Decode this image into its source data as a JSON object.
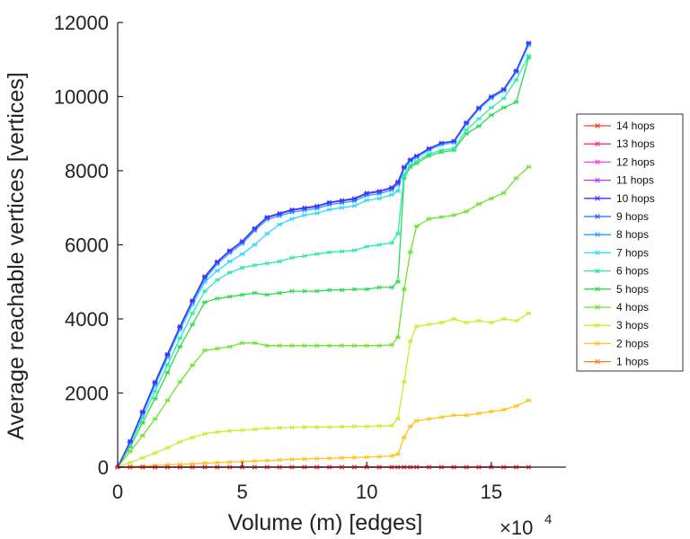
{
  "chart_data": {
    "type": "line",
    "title": "",
    "xlabel": "Volume (m) [edges]",
    "ylabel": "Average reachable vertices [vertices]",
    "x_multiplier_label": "×10",
    "x_multiplier_exponent": "4",
    "xlim": [
      0,
      18
    ],
    "ylim": [
      0,
      12000
    ],
    "xticks": [
      0,
      5,
      10,
      15
    ],
    "yticks": [
      0,
      2000,
      4000,
      6000,
      8000,
      10000,
      12000
    ],
    "grid": false,
    "legend_position": "right",
    "x": [
      0,
      0.5,
      1,
      1.5,
      2,
      2.5,
      3,
      3.5,
      4,
      4.5,
      5,
      5.5,
      6,
      6.5,
      7,
      7.5,
      8,
      8.5,
      9,
      9.5,
      10,
      10.5,
      11,
      11.25,
      11.5,
      11.75,
      12,
      12.5,
      13,
      13.5,
      14,
      14.5,
      15,
      15.5,
      16,
      16.5
    ],
    "series": [
      {
        "name": "14 hops",
        "color": "#ff3b30",
        "values": [
          0,
          0,
          0,
          0,
          0,
          0,
          0,
          0,
          0,
          0,
          0,
          0,
          0,
          0,
          0,
          0,
          0,
          0,
          0,
          0,
          0,
          0,
          0,
          0,
          0,
          0,
          0,
          0,
          0,
          0,
          0,
          0,
          0,
          0,
          0,
          0
        ]
      },
      {
        "name": "13 hops",
        "color": "#ff2d78",
        "values": [
          0,
          0,
          0,
          0,
          0,
          0,
          0,
          0,
          0,
          0,
          0,
          0,
          0,
          0,
          0,
          0,
          0,
          0,
          0,
          0,
          0,
          0,
          0,
          0,
          0,
          0,
          0,
          0,
          0,
          0,
          0,
          0,
          0,
          0,
          0,
          0
        ]
      },
      {
        "name": "12 hops",
        "color": "#ff3cf0",
        "values": [
          0,
          0,
          0,
          0,
          0,
          0,
          0,
          0,
          0,
          0,
          0,
          0,
          0,
          0,
          0,
          0,
          0,
          0,
          0,
          0,
          0,
          0,
          0,
          0,
          0,
          0,
          0,
          0,
          0,
          0,
          0,
          0,
          0,
          0,
          0,
          0
        ]
      },
      {
        "name": "11 hops",
        "color": "#b43cff",
        "values": [
          0,
          0,
          0,
          0,
          0,
          0,
          0,
          0,
          0,
          0,
          0,
          0,
          0,
          0,
          0,
          0,
          0,
          0,
          0,
          0,
          0,
          0,
          0,
          0,
          0,
          0,
          0,
          0,
          0,
          0,
          0,
          0,
          0,
          0,
          0,
          0
        ]
      },
      {
        "name": "10 hops",
        "color": "#4b2dff",
        "values": [
          0,
          700,
          1500,
          2300,
          3050,
          3800,
          4500,
          5150,
          5550,
          5850,
          6100,
          6450,
          6750,
          6850,
          6950,
          7000,
          7050,
          7150,
          7200,
          7250,
          7400,
          7450,
          7550,
          7700,
          8100,
          8300,
          8400,
          8600,
          8750,
          8800,
          9300,
          9700,
          10000,
          10200,
          10700,
          11450
        ]
      },
      {
        "name": "9 hops",
        "color": "#2f5dff",
        "values": [
          0,
          690,
          1480,
          2280,
          3030,
          3780,
          4480,
          5130,
          5530,
          5830,
          6080,
          6430,
          6730,
          6830,
          6930,
          6980,
          7030,
          7130,
          7180,
          7230,
          7380,
          7430,
          7530,
          7680,
          8100,
          8300,
          8400,
          8600,
          8750,
          8800,
          9300,
          9700,
          10000,
          10200,
          10700,
          11450
        ]
      },
      {
        "name": "8 hops",
        "color": "#2a9dff",
        "values": [
          0,
          680,
          1460,
          2250,
          3000,
          3750,
          4450,
          5080,
          5480,
          5780,
          6030,
          6380,
          6680,
          6780,
          6880,
          6930,
          6980,
          7080,
          7130,
          7180,
          7330,
          7380,
          7480,
          7630,
          8080,
          8280,
          8380,
          8580,
          8730,
          8780,
          9280,
          9680,
          9980,
          10180,
          10680,
          11420
        ]
      },
      {
        "name": "7 hops",
        "color": "#2fd8ff",
        "values": [
          0,
          660,
          1420,
          2200,
          2950,
          3700,
          4380,
          5000,
          5300,
          5550,
          5750,
          6000,
          6300,
          6550,
          6700,
          6800,
          6850,
          6950,
          7000,
          7050,
          7200,
          7250,
          7350,
          7450,
          8050,
          8250,
          8350,
          8550,
          8700,
          8750,
          9250,
          9650,
          9950,
          10150,
          10650,
          11380
        ]
      },
      {
        "name": "6 hops",
        "color": "#2de8b0",
        "values": [
          0,
          620,
          1330,
          2050,
          2760,
          3480,
          4150,
          4750,
          5050,
          5250,
          5380,
          5450,
          5500,
          5550,
          5650,
          5700,
          5750,
          5800,
          5820,
          5850,
          5950,
          6000,
          6050,
          6300,
          7900,
          8150,
          8250,
          8450,
          8550,
          8600,
          9100,
          9400,
          9700,
          9950,
          10450,
          11100
        ]
      },
      {
        "name": "5 hops",
        "color": "#2bdc4c",
        "values": [
          0,
          550,
          1200,
          1850,
          2550,
          3250,
          3850,
          4450,
          4550,
          4600,
          4650,
          4700,
          4650,
          4700,
          4750,
          4750,
          4750,
          4780,
          4780,
          4800,
          4800,
          4850,
          4850,
          5000,
          7800,
          8100,
          8200,
          8400,
          8500,
          8550,
          9000,
          9200,
          9500,
          9700,
          9850,
          11050
        ]
      },
      {
        "name": "4 hops",
        "color": "#6ee32e",
        "values": [
          0,
          420,
          850,
          1300,
          1800,
          2300,
          2750,
          3150,
          3200,
          3250,
          3350,
          3350,
          3280,
          3280,
          3280,
          3280,
          3280,
          3280,
          3280,
          3280,
          3280,
          3280,
          3300,
          3500,
          4800,
          5800,
          6500,
          6700,
          6750,
          6800,
          6900,
          7100,
          7250,
          7400,
          7800,
          8100
        ]
      },
      {
        "name": "3 hops",
        "color": "#c8ee2e",
        "values": [
          0,
          120,
          250,
          380,
          520,
          680,
          800,
          900,
          950,
          980,
          1000,
          1020,
          1050,
          1060,
          1070,
          1080,
          1080,
          1080,
          1090,
          1100,
          1100,
          1110,
          1120,
          1300,
          2300,
          3400,
          3800,
          3850,
          3900,
          4000,
          3900,
          3950,
          3900,
          4000,
          3950,
          4150
        ]
      },
      {
        "name": "2 hops",
        "color": "#ffc21e",
        "values": [
          0,
          15,
          30,
          45,
          60,
          75,
          90,
          105,
          120,
          135,
          150,
          165,
          180,
          195,
          210,
          220,
          230,
          240,
          250,
          260,
          270,
          280,
          300,
          350,
          800,
          1100,
          1250,
          1300,
          1350,
          1400,
          1400,
          1450,
          1500,
          1550,
          1650,
          1800
        ]
      },
      {
        "name": "1 hops",
        "color": "#ff7a1e",
        "values": [
          0,
          0,
          0,
          0,
          0,
          0,
          0,
          0,
          0,
          0,
          0,
          0,
          0,
          0,
          0,
          0,
          0,
          0,
          0,
          0,
          0,
          0,
          0,
          0,
          0,
          0,
          0,
          0,
          0,
          0,
          0,
          0,
          0,
          0,
          0,
          0
        ]
      }
    ]
  }
}
